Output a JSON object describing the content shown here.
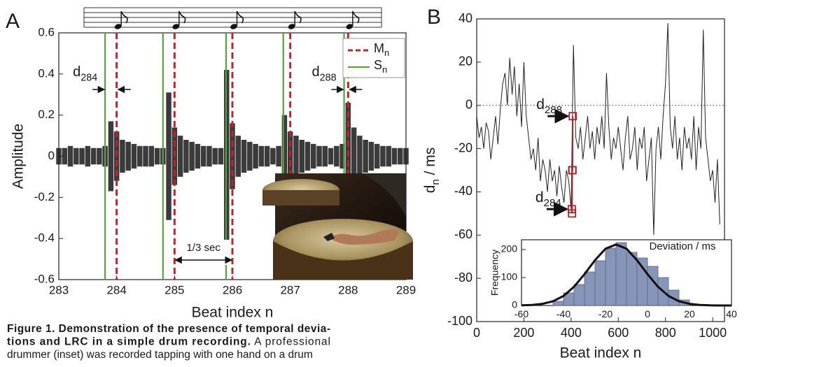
{
  "chart_data": [
    {
      "type": "waveform",
      "panel_label": "A",
      "xlabel": "Beat index n",
      "ylabel": "Amplitude",
      "xlim": [
        283,
        289
      ],
      "ylim": [
        -0.6,
        0.6
      ],
      "xticks": [
        283,
        284,
        285,
        286,
        287,
        288,
        289
      ],
      "yticks": [
        -0.6,
        -0.4,
        -0.2,
        0,
        0.2,
        0.4,
        0.6
      ],
      "color": "#1a1a1a",
      "x": [
        283,
        283.1,
        283.2,
        283.3,
        283.4,
        283.5,
        283.6,
        283.7,
        283.8,
        283.9,
        284,
        284.1,
        284.2,
        284.3,
        284.4,
        284.5,
        284.6,
        284.7,
        284.8,
        284.9,
        285,
        285.1,
        285.2,
        285.3,
        285.4,
        285.5,
        285.6,
        285.7,
        285.8,
        285.9,
        286,
        286.1,
        286.2,
        286.3,
        286.4,
        286.5,
        286.6,
        286.7,
        286.8,
        286.9,
        287,
        287.1,
        287.2,
        287.3,
        287.4,
        287.5,
        287.6,
        287.7,
        287.8,
        287.9,
        288,
        288.1,
        288.2,
        288.3,
        288.4,
        288.5,
        288.6,
        288.7,
        288.8,
        288.9,
        289
      ],
      "values": [
        0.04,
        0.04,
        0.05,
        0.04,
        0.04,
        0.05,
        0.04,
        0.04,
        0.05,
        0.17,
        0.12,
        0.08,
        0.07,
        0.06,
        0.05,
        0.05,
        0.05,
        0.04,
        0.04,
        0.31,
        0.14,
        0.1,
        0.08,
        0.07,
        0.06,
        0.05,
        0.05,
        0.04,
        0.04,
        0.42,
        0.16,
        0.1,
        0.08,
        0.07,
        0.06,
        0.05,
        0.05,
        0.04,
        0.05,
        0.2,
        0.12,
        0.1,
        0.08,
        0.07,
        0.06,
        0.05,
        0.05,
        0.04,
        0.05,
        0.06,
        0.26,
        0.14,
        0.1,
        0.08,
        0.07,
        0.06,
        0.05,
        0.05,
        0.04,
        0.04,
        0.04
      ],
      "markers": [
        {
          "name": {
            "base": "M",
            "sub": "n"
          },
          "color": "#c8202a",
          "dashed": true,
          "x": [
            284,
            285,
            286,
            287,
            288
          ]
        },
        {
          "name": {
            "base": "S",
            "sub": "n"
          },
          "color": "#5aa03c",
          "dashed": false,
          "x": [
            283.8,
            284.8,
            285.89,
            286.88,
            287.93
          ]
        }
      ],
      "annotations": [
        {
          "base": "d",
          "sub": "284"
        },
        {
          "base": "d",
          "sub": "288"
        }
      ],
      "interval_label": "1/3 sec"
    },
    {
      "type": "line",
      "panel_label": "B",
      "xlabel": "Beat index n",
      "ylabel": {
        "base": "d",
        "sub": "n",
        "rest": " / ms"
      },
      "xlim": [
        0,
        1050
      ],
      "ylim": [
        -100,
        40
      ],
      "xticks": [
        0,
        200,
        400,
        600,
        800,
        1000
      ],
      "yticks": [
        -100,
        -80,
        -60,
        -40,
        -20,
        0,
        20,
        40
      ],
      "zero_line": true,
      "series": [
        {
          "color": "#222222",
          "marker": "none",
          "x": [
            0,
            10,
            20,
            30,
            40,
            50,
            60,
            70,
            80,
            90,
            100,
            110,
            120,
            130,
            140,
            150,
            160,
            170,
            180,
            190,
            200,
            210,
            220,
            230,
            240,
            250,
            260,
            270,
            280,
            290,
            300,
            310,
            320,
            330,
            340,
            350,
            360,
            370,
            380,
            390,
            400,
            410,
            420,
            430,
            440,
            450,
            460,
            470,
            480,
            490,
            500,
            510,
            520,
            530,
            540,
            550,
            560,
            570,
            580,
            590,
            600,
            610,
            620,
            630,
            640,
            650,
            660,
            670,
            680,
            690,
            700,
            710,
            720,
            730,
            740,
            750,
            760,
            770,
            780,
            790,
            800,
            810,
            820,
            830,
            840,
            850,
            860,
            870,
            880,
            890,
            900,
            910,
            920,
            930,
            940,
            950,
            960,
            970,
            980,
            990,
            1000,
            1010,
            1020,
            1030
          ],
          "values": [
            -5,
            -15,
            -10,
            -20,
            -8,
            -12,
            -25,
            -15,
            -5,
            -18,
            -2,
            10,
            15,
            0,
            22,
            5,
            18,
            -5,
            10,
            -10,
            20,
            -5,
            -15,
            -25,
            -20,
            -30,
            -15,
            -35,
            -25,
            -30,
            -40,
            -25,
            -35,
            -30,
            -42,
            -28,
            -38,
            -45,
            -30,
            -35,
            -48,
            28,
            -15,
            -20,
            -10,
            -25,
            -15,
            -5,
            -20,
            -12,
            -25,
            -10,
            -18,
            -5,
            -20,
            15,
            -10,
            -25,
            -15,
            -20,
            -10,
            -20,
            -30,
            -15,
            -5,
            -25,
            -20,
            -10,
            -30,
            -15,
            -20,
            -10,
            -35,
            -25,
            -15,
            -60,
            -20,
            -10,
            -25,
            -5,
            10,
            38,
            -10,
            -20,
            -5,
            -25,
            -15,
            -30,
            -10,
            -20,
            -15,
            -25,
            -5,
            -30,
            -10,
            -20,
            35,
            -15,
            -25,
            -35,
            -30,
            -45,
            -25,
            -55
          ]
        },
        {
          "color": "#b2222a",
          "marker": "square",
          "x": [
            403,
            404,
            405,
            406,
            407
          ],
          "values": [
            -48,
            -50,
            -30,
            -30,
            -5
          ]
        }
      ],
      "annotations": [
        {
          "base": "d",
          "sub": "288"
        },
        {
          "base": "d",
          "sub": "284"
        }
      ]
    },
    {
      "type": "histogram",
      "title": "Deviation / ms",
      "ylabel": "Frequency",
      "xlim": [
        -60,
        40
      ],
      "ylim": [
        0,
        235
      ],
      "xticks": [
        -60,
        -40,
        -20,
        0,
        20,
        40
      ],
      "yticks": [
        0,
        100,
        200
      ],
      "color": "#8795b9",
      "bins": [
        -45,
        -40,
        -35,
        -30,
        -25,
        -20,
        -15,
        -10,
        -5,
        0,
        5,
        10,
        15,
        20
      ],
      "counts": [
        15,
        45,
        75,
        120,
        160,
        205,
        225,
        190,
        170,
        140,
        100,
        55,
        20
      ],
      "fit": {
        "color": "#111111",
        "x": [
          -60,
          -55,
          -50,
          -45,
          -40,
          -35,
          -30,
          -25,
          -20,
          -15,
          -10,
          -5,
          0,
          5,
          10,
          15,
          20,
          25,
          30,
          35,
          40
        ],
        "values": [
          0.5,
          2,
          6,
          15,
          34,
          67,
          112,
          162,
          203,
          218,
          203,
          162,
          112,
          67,
          34,
          15,
          6,
          2,
          0.5,
          0.1,
          0
        ]
      }
    }
  ],
  "caption": {
    "lines": [
      [
        {
          "text": "Figure 1. Demonstration of the presence of temporal devia-",
          "bold": true
        }
      ],
      [
        {
          "text": "tions and LRC in a simple drum recording.",
          "bold": true
        },
        {
          "text": " A professional",
          "bold": false
        }
      ],
      [
        {
          "text": "drummer (inset) was recorded tapping with one hand on a drum",
          "bold": false
        }
      ]
    ]
  }
}
